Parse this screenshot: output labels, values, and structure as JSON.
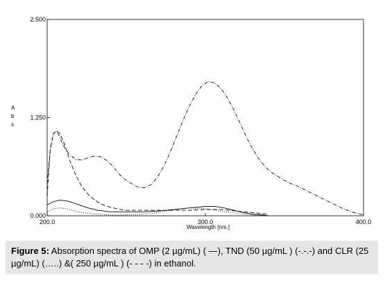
{
  "chart_data": {
    "type": "line",
    "xlabel": "Wavelength [nm.]",
    "ylabel": "A\nb\ns",
    "xlim": [
      200,
      400
    ],
    "ylim": [
      0,
      2.5
    ],
    "x_ticks": [
      "200.0",
      "300.0",
      "400.0"
    ],
    "y_ticks": [
      "2.500",
      "1.250",
      "0.000"
    ],
    "series": [
      {
        "style": "dash-dot",
        "x": [
          200,
          202,
          204,
          206,
          208,
          210,
          214,
          218,
          222,
          226,
          230,
          234,
          238,
          242,
          246,
          250,
          254,
          258,
          262,
          266,
          270,
          274,
          278,
          282,
          286,
          290,
          294,
          298,
          302,
          306,
          310,
          314,
          318,
          322,
          326,
          330,
          334,
          338,
          342,
          346,
          350,
          354,
          358,
          362,
          366,
          370,
          374,
          378,
          382,
          386,
          390,
          394,
          398,
          400
        ],
        "y": [
          0.25,
          0.85,
          1.05,
          1.08,
          1.0,
          0.9,
          0.78,
          0.72,
          0.71,
          0.74,
          0.76,
          0.75,
          0.7,
          0.62,
          0.52,
          0.45,
          0.4,
          0.36,
          0.36,
          0.4,
          0.5,
          0.64,
          0.82,
          1.02,
          1.22,
          1.4,
          1.55,
          1.66,
          1.71,
          1.69,
          1.62,
          1.5,
          1.35,
          1.18,
          1.0,
          0.85,
          0.72,
          0.62,
          0.55,
          0.5,
          0.45,
          0.41,
          0.38,
          0.34,
          0.3,
          0.26,
          0.22,
          0.18,
          0.14,
          0.1,
          0.07,
          0.04,
          0.02,
          0.01
        ]
      },
      {
        "style": "dashed",
        "x": [
          200,
          202,
          204,
          206,
          208,
          210,
          212,
          214,
          218,
          222,
          226,
          230,
          234,
          238,
          242,
          246,
          250,
          256,
          262,
          270,
          280,
          290,
          300,
          310,
          320,
          330,
          340
        ],
        "y": [
          0.4,
          0.85,
          1.05,
          1.08,
          1.05,
          0.96,
          0.85,
          0.72,
          0.52,
          0.37,
          0.27,
          0.2,
          0.15,
          0.12,
          0.1,
          0.08,
          0.07,
          0.07,
          0.07,
          0.07,
          0.07,
          0.07,
          0.08,
          0.08,
          0.06,
          0.04,
          0.02
        ]
      },
      {
        "style": "solid",
        "x": [
          200,
          204,
          208,
          212,
          216,
          220,
          226,
          232,
          240,
          250,
          260,
          270,
          280,
          290,
          296,
          300,
          306,
          312,
          318,
          324,
          330,
          336,
          340
        ],
        "y": [
          0.14,
          0.18,
          0.2,
          0.19,
          0.17,
          0.14,
          0.1,
          0.07,
          0.05,
          0.05,
          0.05,
          0.06,
          0.08,
          0.1,
          0.11,
          0.12,
          0.12,
          0.1,
          0.07,
          0.04,
          0.02,
          0.01,
          0.0
        ]
      },
      {
        "style": "dotted",
        "x": [
          200,
          204,
          208,
          212,
          216,
          220,
          226,
          232,
          240,
          250,
          260,
          270,
          280,
          290,
          300,
          310,
          320,
          330,
          340
        ],
        "y": [
          0.05,
          0.09,
          0.1,
          0.09,
          0.07,
          0.05,
          0.03,
          0.02,
          0.01,
          0.01,
          0.02,
          0.04,
          0.08,
          0.1,
          0.09,
          0.06,
          0.03,
          0.01,
          0.0
        ]
      }
    ]
  },
  "caption": {
    "label": "Figure 5:",
    "text": " Absorption spectra of OMP (2 µg/mL) ( —), TND (50 µg/mL ) (-.-.-) and CLR (25 µg/mL) (…..) &( 250 µg/mL ) (- - - -) in ethanol."
  }
}
